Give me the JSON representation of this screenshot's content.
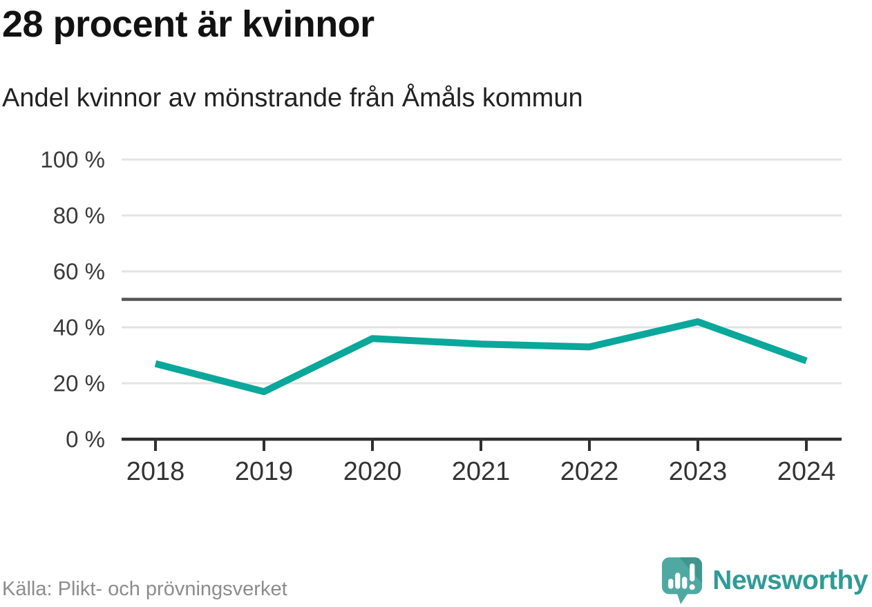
{
  "header": {
    "title": "28 procent är kvinnor",
    "subtitle": "Andel kvinnor av mönstrande från Åmåls kommun"
  },
  "chart_data": {
    "type": "line",
    "title": "28 procent är kvinnor",
    "subtitle": "Andel kvinnor av mönstrande från Åmåls kommun",
    "categories": [
      "2018",
      "2019",
      "2020",
      "2021",
      "2022",
      "2023",
      "2024"
    ],
    "series": [
      {
        "name": "Andel kvinnor av mönstrande",
        "values": [
          27,
          17,
          36,
          34,
          33,
          42,
          28
        ]
      }
    ],
    "unit": "%",
    "ylim": [
      0,
      100
    ],
    "yticks": [
      0,
      20,
      40,
      60,
      80,
      100
    ],
    "ytick_labels": [
      "0 %",
      "20 %",
      "40 %",
      "60 %",
      "80 %",
      "100 %"
    ],
    "reference_line": 50,
    "grid": true,
    "legend": "none",
    "line_color": "#0aa79b"
  },
  "footer": {
    "source": "Källa: Plikt- och prövningsverket",
    "brand": "Newsworthy"
  },
  "icons": {
    "logo": "newsworthy-speech-bubble-bar-chart-icon"
  },
  "colors": {
    "accent": "#0aa79b",
    "brand_teal": "#2f9b95",
    "logo_bubble": "#4fa9a2",
    "logo_bubble_shade": "#3f968f",
    "grid": "#e3e3e3",
    "reference": "#555555",
    "axis": "#2f2f2f",
    "title_text": "#121212",
    "muted_text": "#8c8c8c"
  }
}
